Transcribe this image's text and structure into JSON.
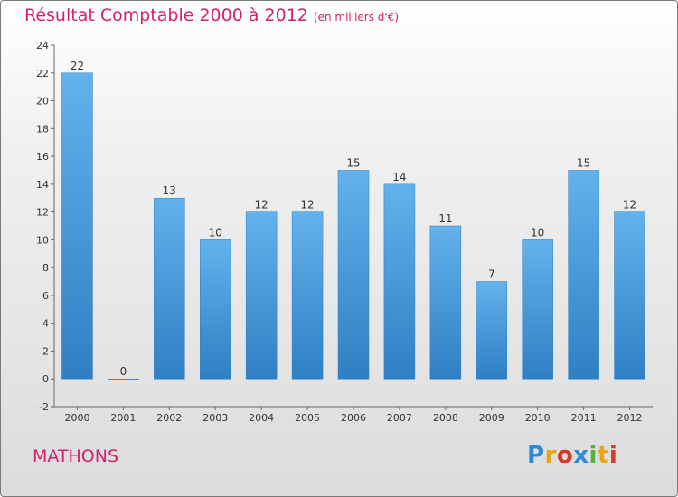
{
  "header": {
    "title": "Résultat Comptable 2000 à 2012",
    "subtitle": "(en milliers d'€)"
  },
  "footer": {
    "place": "MATHONS",
    "logo": "Proxiti"
  },
  "colors": {
    "title": "#d1236b",
    "bar_top": "#63b2ec",
    "bar_bottom": "#2f7fc4"
  },
  "chart_data": {
    "type": "bar",
    "title": "Résultat Comptable 2000 à 2012",
    "subtitle": "(en milliers d'€)",
    "categories": [
      "2000",
      "2001",
      "2002",
      "2003",
      "2004",
      "2005",
      "2006",
      "2007",
      "2008",
      "2009",
      "2010",
      "2011",
      "2012"
    ],
    "values": [
      22,
      0,
      13,
      10,
      12,
      12,
      15,
      14,
      11,
      7,
      10,
      15,
      12
    ],
    "ylim": [
      -2,
      24
    ],
    "yticks": [
      -2,
      0,
      2,
      4,
      6,
      8,
      10,
      12,
      14,
      16,
      18,
      20,
      22,
      24
    ],
    "grid": false,
    "legend": "none"
  }
}
